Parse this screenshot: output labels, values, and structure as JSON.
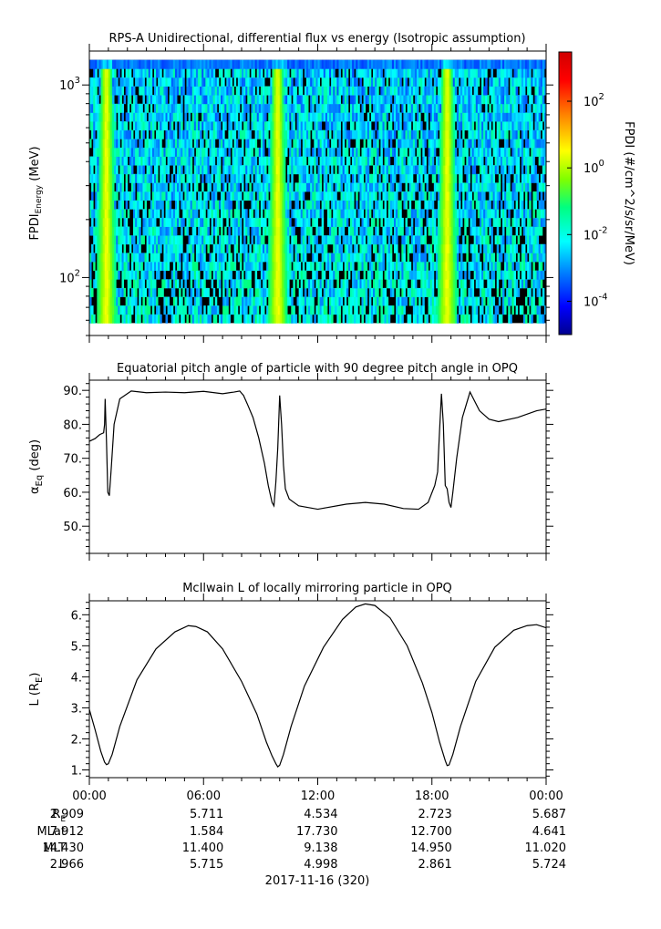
{
  "chart_data": [
    {
      "type": "heatmap",
      "title": "RPS-A Unidirectional, differential flux vs energy (Isotropic assumption)",
      "ylabel_main": "FPDI",
      "ylabel_sub": "Energy",
      "ylabel_unit": "(MeV)",
      "yscale": "log",
      "ylim": [
        50,
        1500
      ],
      "y_ticks": [
        {
          "value": 100,
          "base": "10",
          "exp": "2"
        },
        {
          "value": 1000,
          "base": "10",
          "exp": "3"
        }
      ],
      "energy_range": [
        58,
        1350
      ],
      "n_energy_channels": 30,
      "colorbar": {
        "label": "FPDI (#/cm^2/s/sr/MeV)",
        "scale": "log",
        "range": [
          1e-05,
          3000
        ],
        "ticks": [
          {
            "value": 0.0001,
            "base": "10",
            "exp": "-4"
          },
          {
            "value": 0.01,
            "base": "10",
            "exp": "-2"
          },
          {
            "value": 1,
            "base": "10",
            "exp": "0"
          },
          {
            "value": 100,
            "base": "10",
            "exp": "2"
          }
        ],
        "colors": [
          "#00008f",
          "#0000ff",
          "#0080ff",
          "#00ffff",
          "#00ff80",
          "#80ff00",
          "#ffff00",
          "#ff8000",
          "#ff0000",
          "#d00000"
        ]
      },
      "perigee_hours": [
        0.9,
        9.9,
        18.8
      ],
      "description_values": {
        "background_flux": 0.001,
        "peak_flux": 5
      }
    },
    {
      "type": "line",
      "title": "Equatorial pitch angle of particle with 90 degree pitch angle in OPQ",
      "ylabel_main": "α",
      "ylabel_sub": "Eq",
      "ylabel_unit": "(deg)",
      "ylim": [
        42,
        93
      ],
      "y_ticks": [
        50,
        60,
        70,
        80,
        90
      ],
      "y_tick_labels": [
        "50.",
        "60.",
        "70.",
        "80.",
        "90."
      ],
      "x": [
        0.0,
        0.3,
        0.55,
        0.75,
        0.8,
        0.83,
        0.9,
        0.97,
        1.05,
        1.15,
        1.3,
        1.6,
        2.2,
        3.0,
        4.0,
        5.0,
        6.0,
        7.0,
        7.6,
        7.9,
        8.1,
        8.3,
        8.6,
        8.9,
        9.2,
        9.4,
        9.6,
        9.7,
        9.8,
        9.9,
        10.0,
        10.1,
        10.2,
        10.3,
        10.5,
        11.0,
        12.0,
        13.5,
        14.5,
        15.5,
        16.5,
        17.3,
        17.8,
        18.15,
        18.3,
        18.4,
        18.5,
        18.6,
        18.7,
        18.8,
        18.9,
        19.0,
        19.1,
        19.3,
        19.6,
        20.0,
        20.5,
        21.0,
        21.5,
        22.5,
        23.5,
        24.0
      ],
      "y": [
        75.0,
        75.8,
        77.0,
        77.5,
        80.0,
        87.5,
        75.0,
        60.0,
        59.0,
        67.0,
        80.0,
        87.5,
        89.8,
        89.3,
        89.5,
        89.3,
        89.7,
        89.0,
        89.5,
        89.8,
        88.5,
        86.0,
        82.0,
        76.0,
        68.5,
        62.0,
        57.0,
        56.0,
        63.0,
        73.0,
        88.5,
        80.0,
        68.0,
        61.0,
        58.0,
        56.0,
        55.0,
        56.5,
        57.0,
        56.5,
        55.2,
        55.0,
        57.0,
        62.0,
        66.0,
        78.0,
        89.0,
        80.0,
        62.0,
        61.0,
        57.0,
        55.5,
        60.0,
        70.0,
        82.0,
        89.5,
        84.0,
        81.5,
        80.8,
        82.0,
        84.0,
        84.5
      ],
      "xlim": [
        0,
        24
      ]
    },
    {
      "type": "line",
      "title": "McIlwain L of locally mirroring particle in OPQ",
      "ylabel_main": "L (R",
      "ylabel_sub": "E",
      "ylabel_unit": ")",
      "ylim": [
        0.75,
        6.45
      ],
      "y_ticks": [
        1,
        2,
        3,
        4,
        5,
        6
      ],
      "y_tick_labels": [
        "1.",
        "2.",
        "3.",
        "4.",
        "5.",
        "6."
      ],
      "x": [
        0.0,
        0.3,
        0.6,
        0.8,
        0.9,
        1.0,
        1.2,
        1.6,
        2.5,
        3.5,
        4.5,
        5.2,
        5.6,
        6.2,
        7.0,
        8.0,
        8.8,
        9.3,
        9.6,
        9.8,
        9.9,
        10.0,
        10.2,
        10.6,
        11.3,
        12.3,
        13.3,
        14.0,
        14.5,
        15.0,
        15.8,
        16.7,
        17.5,
        18.0,
        18.4,
        18.7,
        18.8,
        18.9,
        19.1,
        19.5,
        20.3,
        21.3,
        22.3,
        23.0,
        23.5,
        24.0
      ],
      "y": [
        2.95,
        2.3,
        1.6,
        1.25,
        1.17,
        1.2,
        1.5,
        2.4,
        3.9,
        4.9,
        5.45,
        5.65,
        5.62,
        5.45,
        4.9,
        3.85,
        2.8,
        1.9,
        1.45,
        1.2,
        1.1,
        1.15,
        1.5,
        2.4,
        3.7,
        4.95,
        5.85,
        6.25,
        6.35,
        6.3,
        5.9,
        5.0,
        3.8,
        2.85,
        1.9,
        1.3,
        1.14,
        1.16,
        1.5,
        2.4,
        3.85,
        4.95,
        5.5,
        5.65,
        5.68,
        5.58
      ],
      "xlim": [
        0,
        24
      ]
    }
  ],
  "x_axis": {
    "tick_labels": [
      "00:00",
      "06:00",
      "12:00",
      "18:00",
      "00:00"
    ],
    "tick_hours": [
      0,
      6,
      12,
      18,
      24
    ],
    "row_labels": [
      {
        "main": "R",
        "sub": "E"
      },
      {
        "main": "MLat",
        "sub": ""
      },
      {
        "main": "MLT",
        "sub": ""
      },
      {
        "main": "L",
        "sub": ""
      }
    ],
    "rows": [
      [
        "2.909",
        "5.711",
        "4.534",
        "2.723",
        "5.687"
      ],
      [
        "7.912",
        "1.584",
        "17.730",
        "12.700",
        "4.641"
      ],
      [
        "14.430",
        "11.400",
        "9.138",
        "14.950",
        "11.020"
      ],
      [
        "2.966",
        "5.715",
        "4.998",
        "2.861",
        "5.724"
      ]
    ],
    "date_label": "2017-11-16 (320)"
  }
}
